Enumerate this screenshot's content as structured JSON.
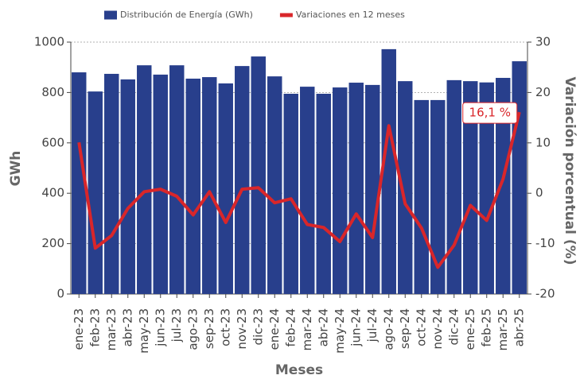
{
  "chart_data": {
    "type": "bar",
    "x_label": "Meses",
    "y_label": "GWh",
    "y2_label": "Variación porcentual (%)",
    "categories": [
      "ene-23",
      "feb-23",
      "mar-23",
      "abr-23",
      "may-23",
      "jun-23",
      "jul-23",
      "ago-23",
      "sep-23",
      "oct-23",
      "nov-23",
      "dic-23",
      "ene-24",
      "feb-24",
      "mar-24",
      "abr-24",
      "may-24",
      "jun-24",
      "jul-24",
      "ago-24",
      "sep-24",
      "oct-24",
      "nov-24",
      "dic-24",
      "ene-25",
      "feb-25",
      "mar-25",
      "abr-25"
    ],
    "series": [
      {
        "name": "Distribución de Energía (GWh)",
        "type": "bar",
        "color": "#283f8c",
        "values": [
          880,
          804,
          874,
          852,
          908,
          871,
          908,
          855,
          861,
          836,
          905,
          943,
          864,
          795,
          823,
          795,
          820,
          839,
          830,
          972,
          845,
          770,
          770,
          849,
          845,
          840,
          858,
          924
        ]
      },
      {
        "name": "Variaciones en 12 meses",
        "type": "line",
        "axis": "y2",
        "color": "#d9262a",
        "values": [
          10.1,
          -10.9,
          -8.4,
          -3.0,
          0.3,
          0.8,
          -0.6,
          -4.3,
          0.3,
          -5.8,
          0.8,
          1.1,
          -1.9,
          -1.1,
          -6.2,
          -6.8,
          -9.6,
          -4.1,
          -8.8,
          13.4,
          -2.1,
          -6.9,
          -14.7,
          -10.3,
          -2.4,
          -5.4,
          2.8,
          16.1
        ],
        "value_labels": [
          null,
          null,
          null,
          null,
          null,
          null,
          null,
          null,
          null,
          null,
          null,
          null,
          null,
          null,
          null,
          null,
          null,
          null,
          null,
          null,
          null,
          null,
          null,
          null,
          null,
          null,
          null,
          "16,1 %"
        ]
      }
    ],
    "ylim": [
      0,
      1000
    ],
    "yticks": [
      0,
      200,
      400,
      600,
      800,
      1000
    ],
    "y2lim": [
      -20,
      30
    ],
    "y2ticks": [
      -20,
      -10,
      0,
      10,
      20,
      30
    ],
    "grid": true
  }
}
